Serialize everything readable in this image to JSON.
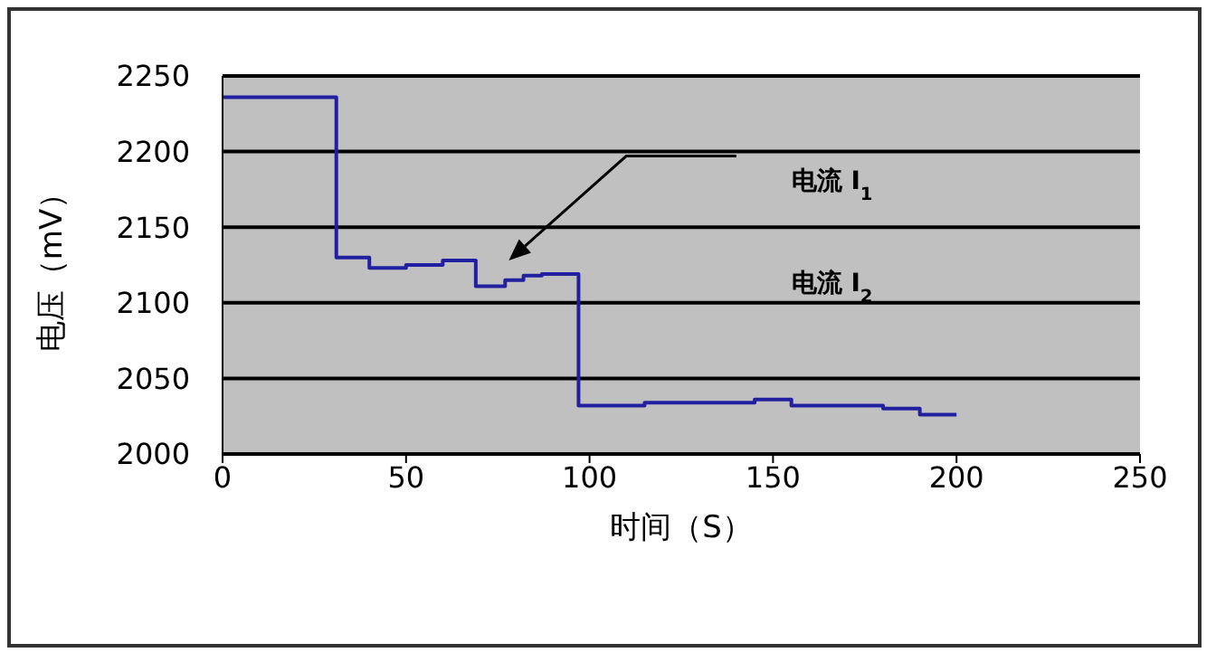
{
  "chart_data": {
    "type": "step",
    "xlabel": "时间（S）",
    "ylabel": "电压（mV）",
    "x": [
      0,
      30,
      31,
      40,
      50,
      60,
      69,
      77,
      82,
      87,
      96,
      97,
      110,
      115,
      140,
      145,
      150,
      155,
      175,
      180,
      190,
      200
    ],
    "series": [
      {
        "color": "#2020a0",
        "values": [
          2236,
          2236,
          2130,
          2123,
          2125,
          2128,
          2111,
          2115,
          2118,
          2119,
          2119,
          2032,
          2032,
          2034,
          2034,
          2036,
          2036,
          2032,
          2032,
          2030,
          2026,
          2026
        ]
      }
    ],
    "xlim": [
      0,
      250
    ],
    "xticks": [
      0,
      50,
      100,
      150,
      200,
      250
    ],
    "ylim": [
      2000,
      2250
    ],
    "yticks": [
      2000,
      2050,
      2100,
      2150,
      2200,
      2250
    ],
    "grid": "y",
    "marker": "none",
    "line_style": "solid",
    "annotations": [
      "电流 I$_{1}$",
      "电流 I$_{2}$"
    ]
  }
}
